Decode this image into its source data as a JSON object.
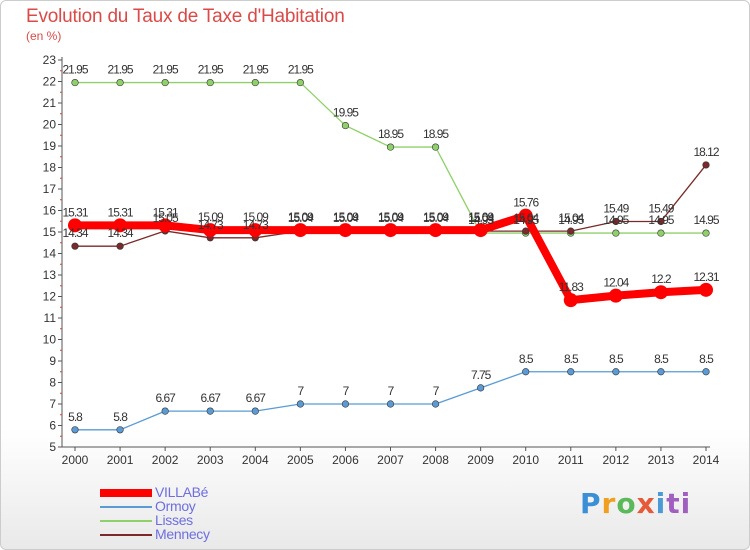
{
  "title": "Evolution du Taux de Taxe d'Habitation",
  "subtitle": "(en %)",
  "logo": {
    "letters": [
      "P",
      "r",
      "o",
      "x",
      "i",
      "ti"
    ]
  },
  "chart_data": {
    "type": "line",
    "x": [
      2000,
      2001,
      2002,
      2003,
      2004,
      2005,
      2006,
      2007,
      2008,
      2009,
      2010,
      2011,
      2012,
      2013,
      2014
    ],
    "ylim": [
      5,
      23
    ],
    "yticks": [
      5,
      6,
      7,
      8,
      9,
      10,
      11,
      12,
      13,
      14,
      15,
      16,
      17,
      18,
      19,
      20,
      21,
      22,
      23
    ],
    "grid": false,
    "legend_position": "bottom-left",
    "series": [
      {
        "name": "VILLABé",
        "color": "#ff0000",
        "values": [
          15.31,
          15.31,
          15.31,
          15.09,
          15.09,
          15.09,
          15.09,
          15.09,
          15.09,
          15.09,
          15.76,
          11.83,
          12.04,
          12.2,
          12.31
        ],
        "labels": [
          "15.31",
          "15.31",
          "15.31",
          "15.09",
          "15.09",
          "15.09",
          "15.09",
          "15.09",
          "15.09",
          "15.09",
          "15.76",
          "11.83",
          "12.04",
          "12.2",
          "12.31"
        ]
      },
      {
        "name": "Ormoy",
        "color": "#5a9bd5",
        "values": [
          5.8,
          5.8,
          6.67,
          6.67,
          6.67,
          7,
          7,
          7,
          7,
          7.75,
          8.5,
          8.5,
          8.5,
          8.5,
          8.5
        ],
        "labels": [
          "5.8",
          "5.8",
          "6.67",
          "6.67",
          "6.67",
          "7",
          "7",
          "7",
          "7",
          "7.75",
          "8.5",
          "8.5",
          "8.5",
          "8.5",
          "8.5"
        ]
      },
      {
        "name": "Lisses",
        "color": "#8fd06a",
        "values": [
          21.95,
          21.95,
          21.95,
          21.95,
          21.95,
          21.95,
          19.95,
          18.95,
          18.95,
          14.95,
          14.95,
          14.95,
          14.95,
          14.95,
          14.95
        ],
        "labels": [
          "21.95",
          "21.95",
          "21.95",
          "21.95",
          "21.95",
          "21.95",
          "19.95",
          "18.95",
          "18.95",
          "14.95",
          "14.95",
          "14.95",
          "14.95",
          "14.95",
          "14.95"
        ]
      },
      {
        "name": "Mennecy",
        "color": "#7a2a2a",
        "values": [
          14.34,
          14.34,
          15.05,
          14.73,
          14.73,
          15.04,
          15.04,
          15.04,
          15.04,
          15.04,
          15.04,
          15.04,
          15.49,
          15.49,
          18.12
        ],
        "labels": [
          "14.34",
          "14.34",
          "15.05",
          "14.73",
          "14.73",
          "15.04",
          "15.04",
          "15.04",
          "15.04",
          "15.04",
          "15.04",
          "15.04",
          "15.49",
          "15.49",
          "18.12"
        ]
      }
    ]
  }
}
